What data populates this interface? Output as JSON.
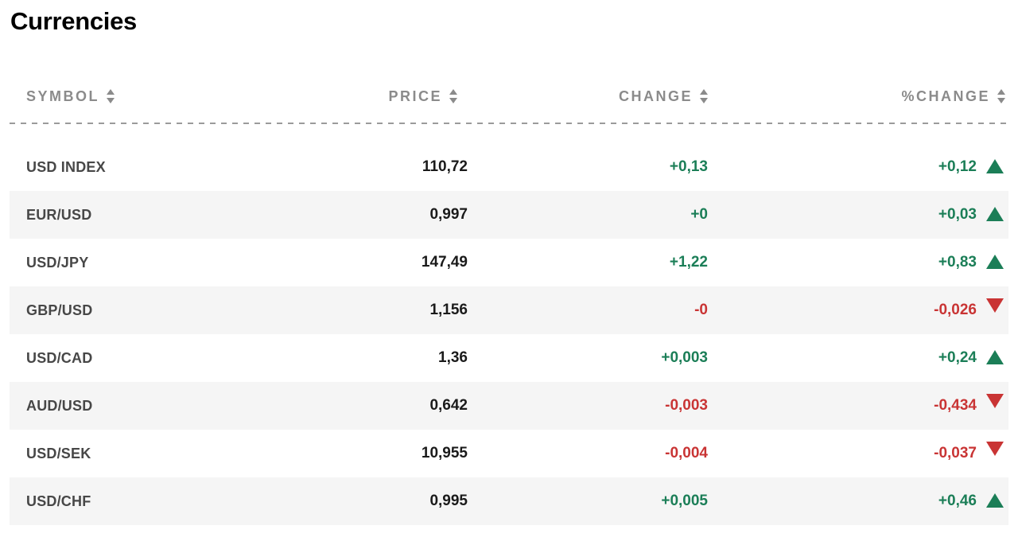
{
  "page": {
    "title": "Currencies"
  },
  "table": {
    "columns": [
      {
        "key": "symbol",
        "label": "SYMBOL",
        "sortable": true
      },
      {
        "key": "price",
        "label": "PRICE",
        "sortable": true
      },
      {
        "key": "change",
        "label": "CHANGE",
        "sortable": true
      },
      {
        "key": "pct_change",
        "label": "%CHANGE",
        "sortable": true
      }
    ],
    "rows": [
      {
        "symbol": "USD INDEX",
        "price": "110,72",
        "change": "+0,13",
        "pct_change": "+0,12",
        "direction": "up"
      },
      {
        "symbol": "EUR/USD",
        "price": "0,997",
        "change": "+0",
        "pct_change": "+0,03",
        "direction": "up"
      },
      {
        "symbol": "USD/JPY",
        "price": "147,49",
        "change": "+1,22",
        "pct_change": "+0,83",
        "direction": "up"
      },
      {
        "symbol": "GBP/USD",
        "price": "1,156",
        "change": "-0",
        "pct_change": "-0,026",
        "direction": "down"
      },
      {
        "symbol": "USD/CAD",
        "price": "1,36",
        "change": "+0,003",
        "pct_change": "+0,24",
        "direction": "up"
      },
      {
        "symbol": "AUD/USD",
        "price": "0,642",
        "change": "-0,003",
        "pct_change": "-0,434",
        "direction": "down"
      },
      {
        "symbol": "USD/SEK",
        "price": "10,955",
        "change": "-0,004",
        "pct_change": "-0,037",
        "direction": "down"
      },
      {
        "symbol": "USD/CHF",
        "price": "0,995",
        "change": "+0,005",
        "pct_change": "+0,46",
        "direction": "up"
      }
    ],
    "colors": {
      "positive": "#1B7E57",
      "negative": "#C93434",
      "header_text": "#8B8B8B",
      "row_alt_bg": "#F5F5F5"
    },
    "icons": {
      "sort": "up-down-sort-arrows",
      "up": "triangle-up",
      "down": "triangle-down"
    }
  }
}
